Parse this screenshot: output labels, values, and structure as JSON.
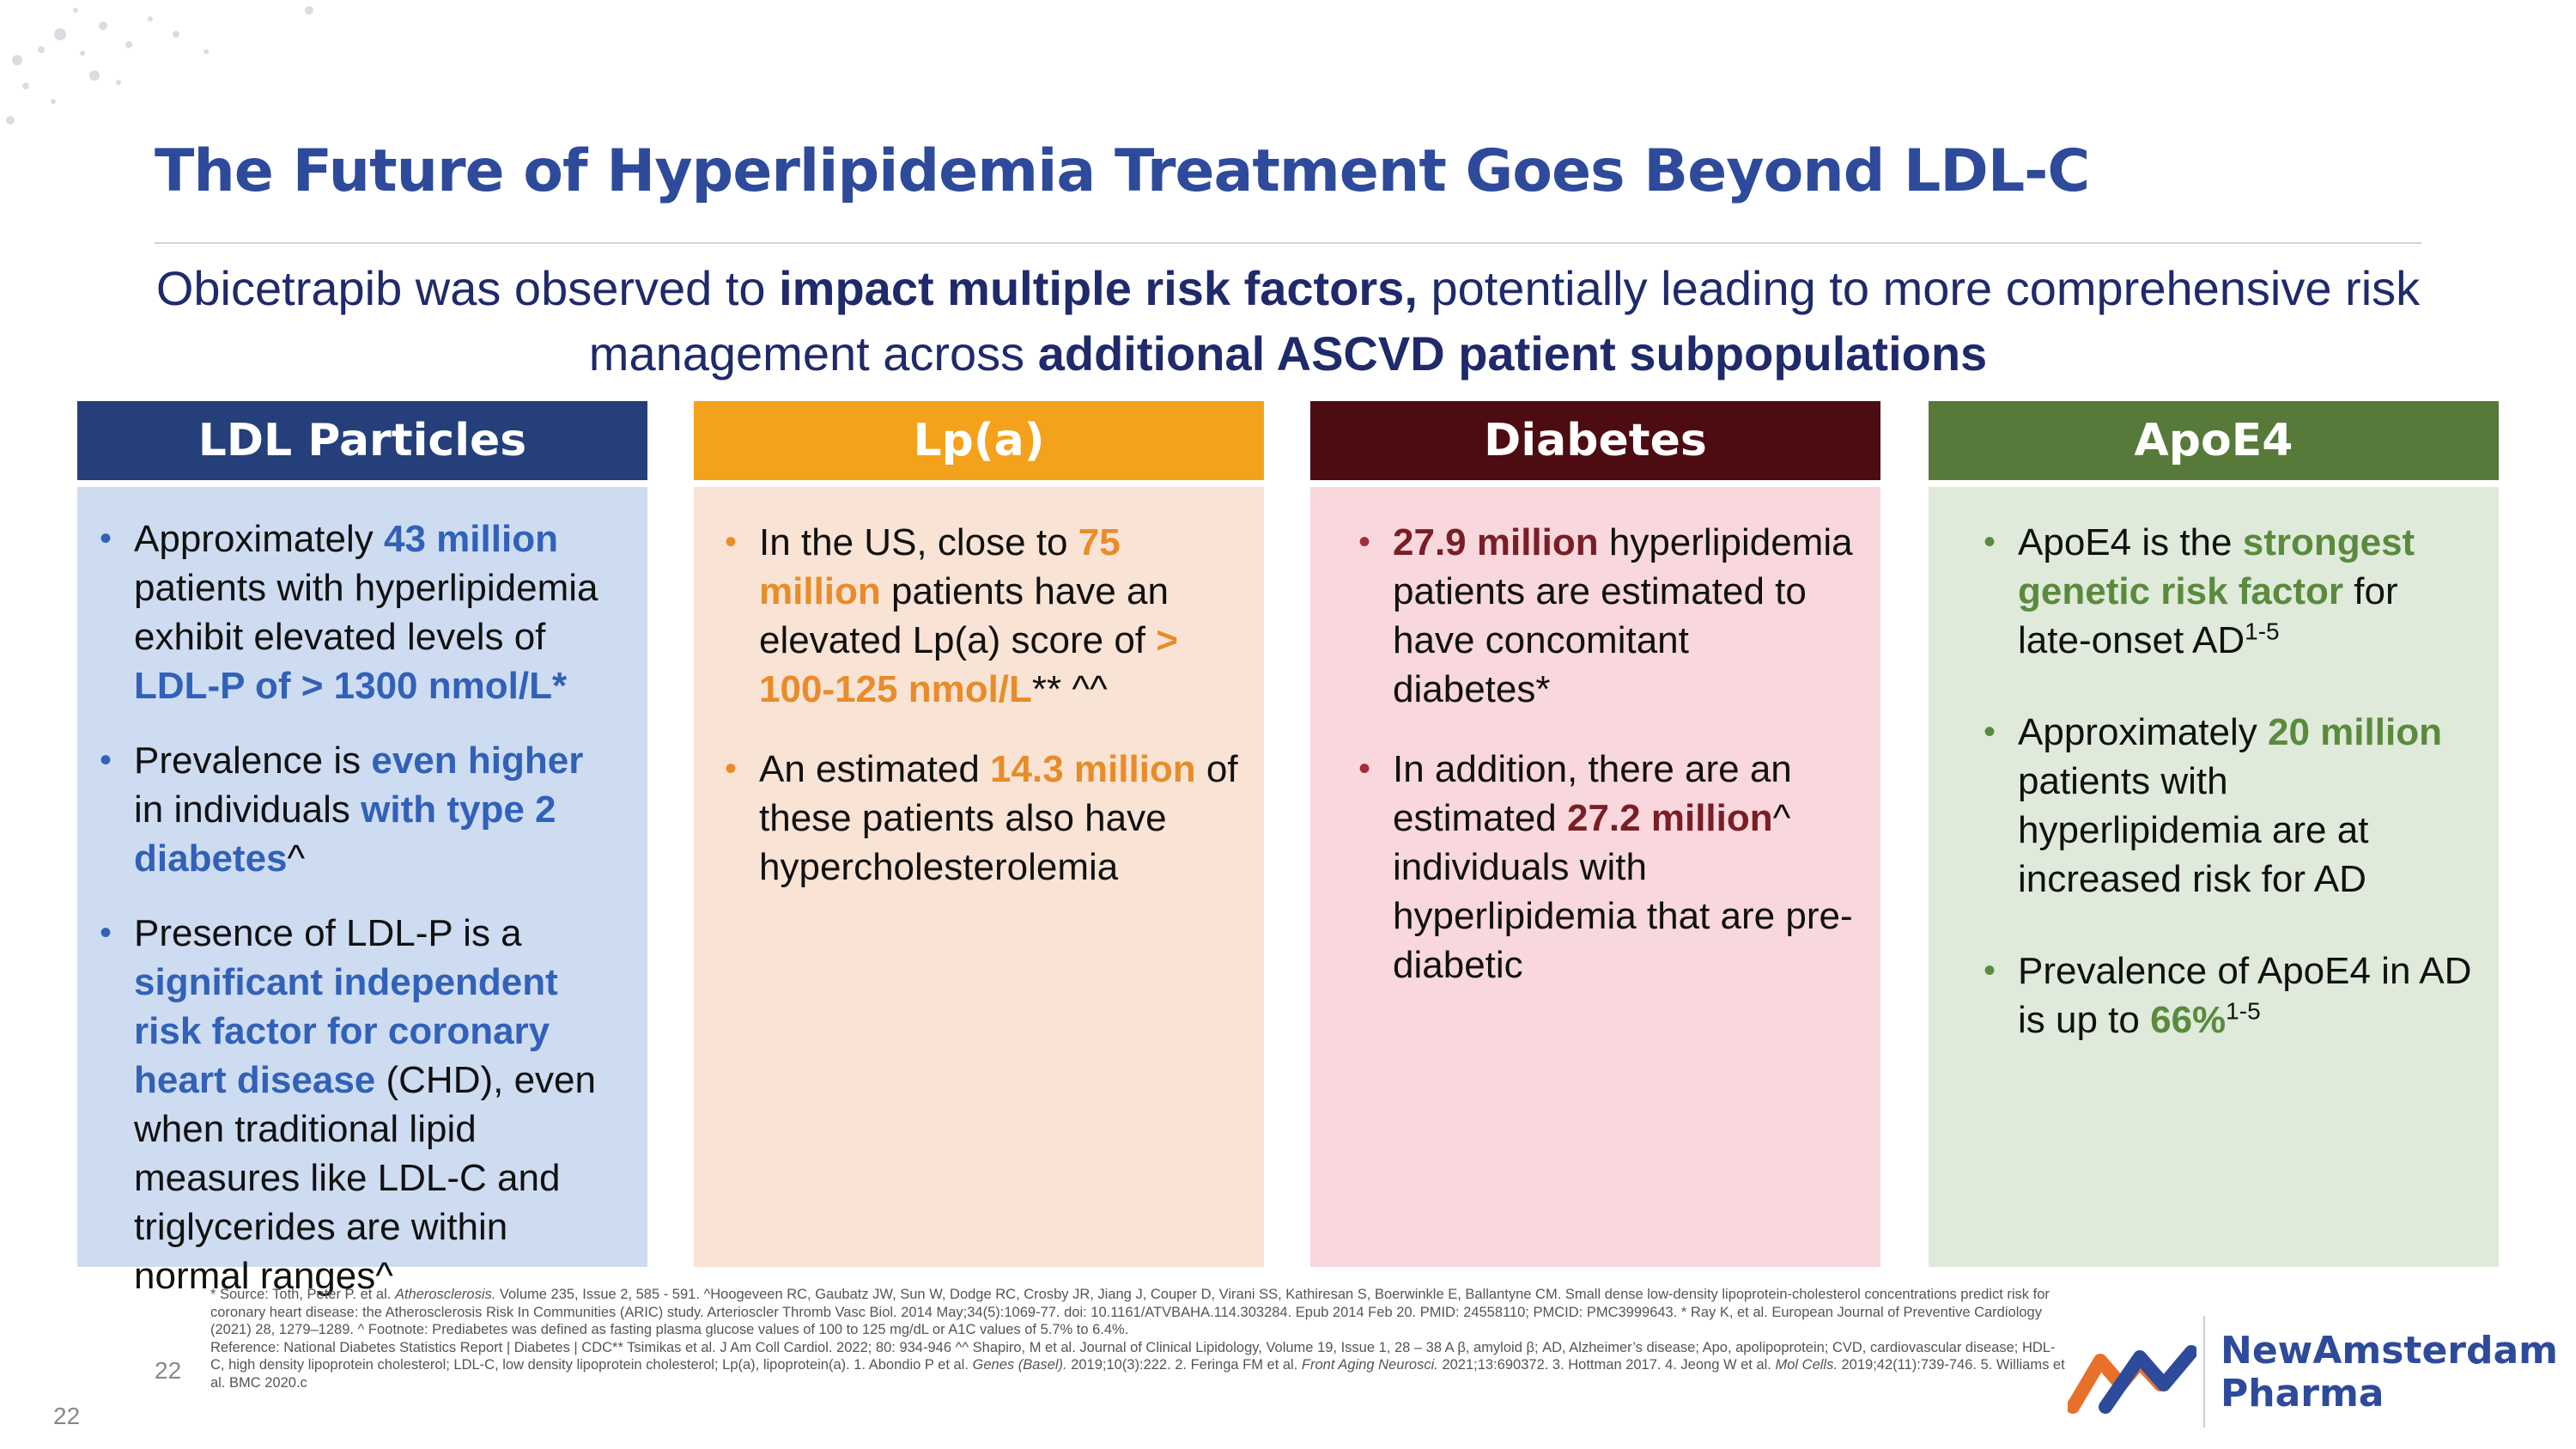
{
  "slide": {
    "title": "The Future of Hyperlipidemia Treatment Goes Beyond LDL-C",
    "subtitle": {
      "t1": "Obicetrapib was observed to ",
      "b1": "impact multiple risk factors,",
      "t2": " potentially leading to more comprehensive risk management across ",
      "b2": "additional ASCVD patient subpopulations"
    }
  },
  "bullet_glyph": "•",
  "columns": [
    {
      "header": "LDL Particles",
      "bullets": [
        [
          "Approximately ",
          "43 million",
          " patients with hyperlipidemia exhibit elevated levels of ",
          "LDL-P of > 1300 nmol/L*"
        ],
        [
          "Prevalence is ",
          "even higher",
          " in individuals ",
          "with type 2 diabetes",
          "^"
        ],
        [
          "Presence of LDL-P is a ",
          "significant independent risk factor for coronary heart disease",
          " (CHD), even when traditional lipid measures like LDL-C and triglycerides are within normal ranges^"
        ]
      ]
    },
    {
      "header": "Lp(a)",
      "bullets": [
        [
          "In the US, close to ",
          "75 million",
          " patients have an elevated Lp(a) score of ",
          "> 100-125 nmol/L",
          "** ^^"
        ],
        [
          "An estimated ",
          "14.3 million",
          " of these patients also have hypercholesterolemia"
        ]
      ]
    },
    {
      "header": "Diabetes",
      "bullets": [
        [
          "",
          "27.9 million",
          " hyperlipidemia patients are estimated to have concomitant diabetes*"
        ],
        [
          "In addition, there are an estimated ",
          "27.2 million",
          "^ individuals with hyperlipidemia that are pre-diabetic"
        ]
      ]
    },
    {
      "header": "ApoE4",
      "bullets": [
        [
          "ApoE4 is the ",
          "strongest genetic risk factor",
          " for late-onset AD",
          "1-5"
        ],
        [
          "Approximately ",
          "20 million",
          " patients with hyperlipidemia are at increased risk for AD"
        ],
        [
          "Prevalence of ApoE4 in AD is up to ",
          "66%",
          "",
          "1-5"
        ]
      ]
    }
  ],
  "footnotes": {
    "l1a": "* Source:  Toth, Peter P. et al.  ",
    "l1i": "Atherosclerosis.",
    "l1b": " Volume 235, Issue 2, 585 - 591. ^Hoogeveen RC, Gaubatz JW, Sun W, Dodge RC, Crosby JR, Jiang J, Couper D, Virani SS, Kathiresan S, Boerwinkle E, Ballantyne CM. Small dense low-density lipoprotein-cholesterol concentrations predict risk for coronary heart disease: the Atherosclerosis Risk In Communities (ARIC) study. Arterioscler Thromb Vasc Biol. 2014 May;34(5):1069-77. doi: 10.1161/ATVBAHA.114.303284. Epub 2014 Feb 20. PMID: 24558110; PMCID: PMC3999643. * Ray K, et al.  European Journal of Preventive Cardiology (2021) 28, 1279–1289. ^ Footnote:  Prediabetes was defined as fasting plasma glucose values of 100 to 125 mg/dL or A1C values of 5.7% to 6.4%.",
    "l2": "Reference:  National Diabetes Statistics Report | Diabetes | CDC** Tsimikas et al.  J Am Coll Cardiol. 2022; 80: 934-946  ^^  Shapiro, M et al. Journal of Clinical Lipidology, Volume 19, Issue 1, 28 – 38 A  β, amyloid β; AD, Alzheimer’s disease; Apo, apolipoprotein; CVD, cardiovascular disease; HDL-C, high density lipoprotein cholesterol; LDL-C, low density lipoprotein cholesterol; Lp(a), lipoprotein(a). 1. Abondio P et al.  ",
    "l2i1": "Genes (Basel).",
    "l2b": " 2019;10(3):222. 2. Feringa FM et al. ",
    "l2i2": "Front Aging Neurosci.",
    "l2c": " 2021;13:690372. 3. Hottman 2017. 4. Jeong W et al. ",
    "l2i3": "Mol Cells.",
    "l2d": " 2019;42(11):739-746. 5. Williams et al. BMC 2020.c"
  },
  "page_number_inner": "22",
  "page_number_outer": "22",
  "logo": {
    "line1": "NewAmsterdam",
    "line2": "Pharma"
  },
  "colors": {
    "title": "#2e4a9b",
    "ldl_header": "#243f7a",
    "ldl_body": "#cedcf1",
    "ldl_accent": "#3161b8",
    "lpa_header": "#f4a21c",
    "lpa_body": "#f8e3d4",
    "lpa_accent": "#e88c2a",
    "diabetes_header": "#4d0c12",
    "diabetes_body": "#f8d7dd",
    "diabetes_accent": "#7a1e26",
    "apoe4_header": "#577a3a",
    "apoe4_body": "#dfeadb",
    "apoe4_accent": "#5a8a3c"
  }
}
